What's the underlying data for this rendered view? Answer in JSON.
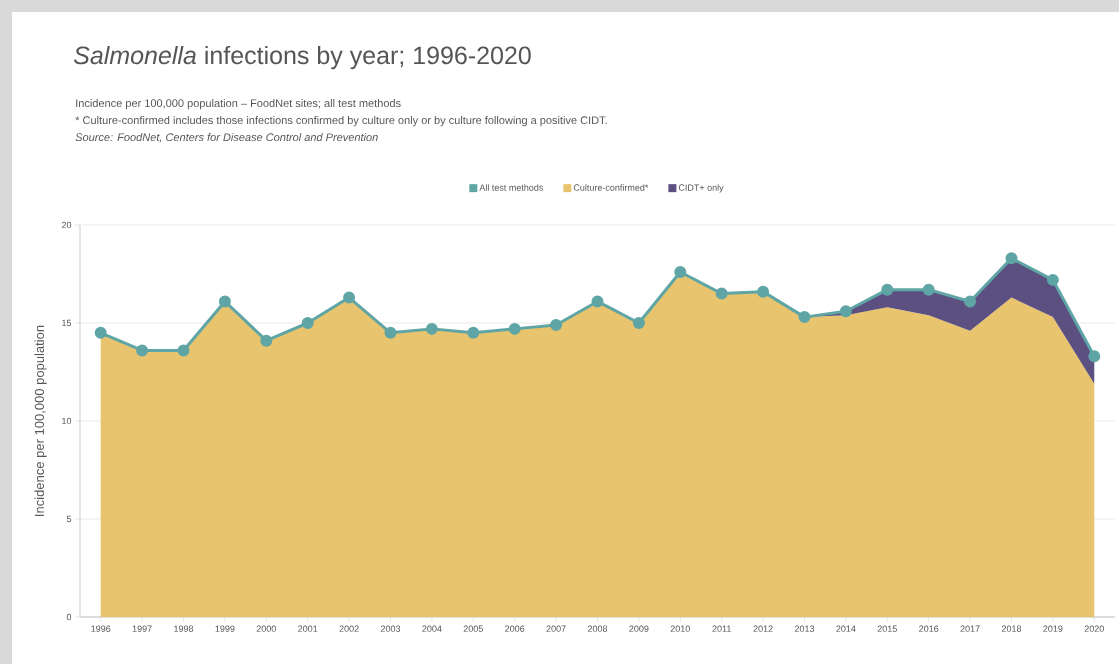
{
  "chart_data": {
    "type": "area",
    "title": "*Salmonella* infections by year; 1996-2020",
    "subtitle": "Incidence per 100,000 population – FoodNet sites; all test methods",
    "annotations": [
      "* Culture-confirmed includes those infections confirmed by culture only or by culture following a positive CIDT.",
      "Source: FoodNet, Centers for Disease Control and Prevention"
    ],
    "ylabel": "Incidence per 100,000 population",
    "categories": [
      "1996",
      "1997",
      "1998",
      "1999",
      "2000",
      "2001",
      "2002",
      "2003",
      "2004",
      "2005",
      "2006",
      "2007",
      "2008",
      "2009",
      "2010",
      "2011",
      "2012",
      "2013",
      "2014",
      "2015",
      "2016",
      "2017",
      "2018",
      "2019",
      "2020"
    ],
    "ylim": [
      0,
      20
    ],
    "yticks": [
      0,
      5,
      10,
      15,
      20
    ],
    "grid": "y",
    "legend": "top",
    "stacked": true,
    "series": [
      {
        "name": "All test methods",
        "type": "line",
        "marker": "circle",
        "color": "#5fa5a6",
        "values": [
          14.5,
          13.6,
          13.6,
          16.1,
          14.1,
          15.0,
          16.3,
          14.5,
          14.7,
          14.5,
          14.7,
          14.9,
          16.1,
          15.0,
          17.6,
          16.5,
          16.6,
          15.3,
          15.6,
          16.7,
          16.7,
          16.1,
          18.3,
          17.2,
          13.3
        ]
      },
      {
        "name": "Culture-confirmed*",
        "color": "#e8c46e",
        "values": [
          14.5,
          13.6,
          13.6,
          16.1,
          14.1,
          15.0,
          16.3,
          14.5,
          14.7,
          14.5,
          14.7,
          14.9,
          16.1,
          15.0,
          17.6,
          16.5,
          16.6,
          15.3,
          15.4,
          15.8,
          15.4,
          14.6,
          16.3,
          15.3,
          11.9
        ]
      },
      {
        "name": "CIDT+ only",
        "color": "#5b5080",
        "values": [
          0,
          0,
          0,
          0,
          0,
          0,
          0,
          0,
          0,
          0,
          0,
          0,
          0,
          0,
          0,
          0,
          0,
          0,
          0.2,
          0.9,
          1.3,
          1.5,
          2.0,
          1.9,
          1.4
        ]
      }
    ]
  }
}
